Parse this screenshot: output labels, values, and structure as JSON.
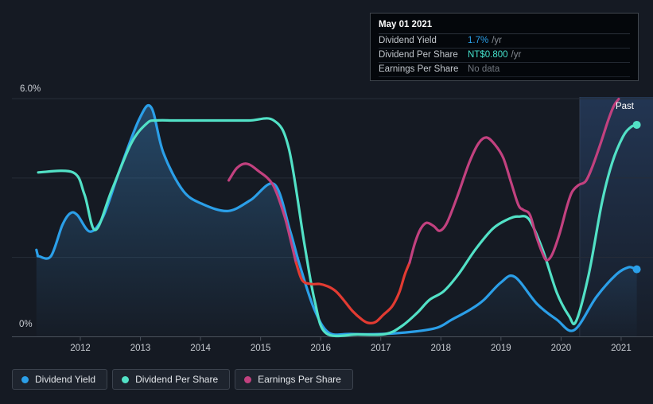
{
  "tooltip": {
    "date": "May 01 2021",
    "rows": [
      {
        "label": "Dividend Yield",
        "value": "1.7%",
        "suffix": "/yr",
        "value_color": "#2B9FE8"
      },
      {
        "label": "Dividend Per Share",
        "value": "NT$0.800",
        "suffix": "/yr",
        "value_color": "#45E0CB"
      },
      {
        "label": "Earnings Per Share",
        "value": "No data",
        "suffix": "",
        "value_color": "#70767E"
      }
    ]
  },
  "legend": [
    {
      "label": "Dividend Yield",
      "color": "#2B9FE8"
    },
    {
      "label": "Dividend Per Share",
      "color": "#52E1C6"
    },
    {
      "label": "Earnings Per Share",
      "color": "#C2417F"
    }
  ],
  "chart_data": {
    "type": "line",
    "title": "",
    "x_axis": {
      "ticks": [
        2012,
        2013,
        2014,
        2015,
        2016,
        2017,
        2018,
        2019,
        2020,
        2021
      ],
      "range": [
        2011.2,
        2021.5
      ]
    },
    "y_axis": {
      "label_top": "6.0%",
      "label_bottom": "0%",
      "range": [
        0,
        6
      ],
      "gridlines_pct": [
        0,
        2,
        4,
        6
      ]
    },
    "past_divider_x": 2020.31,
    "past_label": "Past",
    "colors": {
      "grid": "#272E38",
      "axis": "#4A515B",
      "tick_text": "#C9CDD3",
      "background": "#151A23",
      "red_segment": "#E23B32"
    },
    "series": [
      {
        "name": "Dividend Yield",
        "color": "#2B9FE8",
        "area": true,
        "end_dot": true,
        "points": [
          [
            2011.27,
            2.19
          ],
          [
            2011.29,
            2.06
          ],
          [
            2011.31,
            2.03
          ],
          [
            2011.51,
            2.03
          ],
          [
            2011.7,
            2.81
          ],
          [
            2011.83,
            3.11
          ],
          [
            2011.95,
            3.07
          ],
          [
            2012.16,
            2.65
          ],
          [
            2012.38,
            3.03
          ],
          [
            2012.65,
            4.18
          ],
          [
            2012.98,
            5.48
          ],
          [
            2013.18,
            5.78
          ],
          [
            2013.38,
            4.64
          ],
          [
            2013.71,
            3.68
          ],
          [
            2014.04,
            3.34
          ],
          [
            2014.46,
            3.17
          ],
          [
            2014.83,
            3.44
          ],
          [
            2015.23,
            3.84
          ],
          [
            2015.49,
            2.67
          ],
          [
            2015.65,
            1.81
          ],
          [
            2015.89,
            0.71
          ],
          [
            2016.13,
            0.11
          ],
          [
            2016.49,
            0.07
          ],
          [
            2017.02,
            0.07
          ],
          [
            2017.55,
            0.13
          ],
          [
            2017.94,
            0.23
          ],
          [
            2018.18,
            0.43
          ],
          [
            2018.47,
            0.67
          ],
          [
            2018.7,
            0.91
          ],
          [
            2019.0,
            1.37
          ],
          [
            2019.23,
            1.51
          ],
          [
            2019.6,
            0.83
          ],
          [
            2019.93,
            0.43
          ],
          [
            2020.22,
            0.17
          ],
          [
            2020.59,
            1.01
          ],
          [
            2020.92,
            1.57
          ],
          [
            2021.12,
            1.75
          ],
          [
            2021.22,
            1.72
          ],
          [
            2021.26,
            1.7
          ]
        ]
      },
      {
        "name": "Dividend Per Share",
        "color": "#52E1C6",
        "end_dot": true,
        "points": [
          [
            2011.3,
            4.14
          ],
          [
            2011.88,
            4.14
          ],
          [
            2012.07,
            3.58
          ],
          [
            2012.25,
            2.69
          ],
          [
            2012.52,
            3.68
          ],
          [
            2012.85,
            4.88
          ],
          [
            2013.11,
            5.38
          ],
          [
            2013.27,
            5.45
          ],
          [
            2013.6,
            5.45
          ],
          [
            2014.2,
            5.45
          ],
          [
            2014.8,
            5.45
          ],
          [
            2015.22,
            5.45
          ],
          [
            2015.47,
            4.74
          ],
          [
            2015.73,
            2.33
          ],
          [
            2015.9,
            0.91
          ],
          [
            2016.09,
            0.09
          ],
          [
            2016.62,
            0.06
          ],
          [
            2017.08,
            0.07
          ],
          [
            2017.35,
            0.27
          ],
          [
            2017.61,
            0.61
          ],
          [
            2017.81,
            0.93
          ],
          [
            2018.05,
            1.15
          ],
          [
            2018.3,
            1.59
          ],
          [
            2018.58,
            2.21
          ],
          [
            2018.87,
            2.73
          ],
          [
            2019.13,
            2.97
          ],
          [
            2019.29,
            3.03
          ],
          [
            2019.47,
            2.95
          ],
          [
            2019.69,
            2.21
          ],
          [
            2019.93,
            1.11
          ],
          [
            2020.13,
            0.53
          ],
          [
            2020.25,
            0.39
          ],
          [
            2020.46,
            1.57
          ],
          [
            2020.68,
            3.38
          ],
          [
            2020.85,
            4.38
          ],
          [
            2021.03,
            5.04
          ],
          [
            2021.16,
            5.28
          ],
          [
            2021.26,
            5.34
          ]
        ]
      },
      {
        "name": "Earnings Per Share",
        "color": "#C2417F",
        "segments": [
          {
            "color": "#C2417F",
            "points": [
              [
                2014.47,
                3.94
              ],
              [
                2014.61,
                4.26
              ],
              [
                2014.77,
                4.36
              ],
              [
                2014.96,
                4.18
              ],
              [
                2015.2,
                3.84
              ],
              [
                2015.39,
                3.08
              ],
              [
                2015.51,
                2.37
              ],
              [
                2015.59,
                1.87
              ]
            ]
          },
          {
            "color": "#E23B32",
            "points": [
              [
                2015.59,
                1.87
              ],
              [
                2015.69,
                1.43
              ],
              [
                2015.83,
                1.33
              ],
              [
                2015.98,
                1.33
              ],
              [
                2016.12,
                1.27
              ],
              [
                2016.25,
                1.15
              ],
              [
                2016.38,
                0.93
              ],
              [
                2016.53,
                0.65
              ],
              [
                2016.69,
                0.43
              ],
              [
                2016.79,
                0.35
              ],
              [
                2016.91,
                0.37
              ],
              [
                2017.04,
                0.55
              ],
              [
                2017.19,
                0.77
              ],
              [
                2017.31,
                1.13
              ],
              [
                2017.4,
                1.57
              ],
              [
                2017.48,
                1.87
              ]
            ]
          },
          {
            "color": "#C2417F",
            "points": [
              [
                2017.48,
                1.87
              ],
              [
                2017.57,
                2.37
              ],
              [
                2017.66,
                2.71
              ],
              [
                2017.76,
                2.87
              ],
              [
                2017.88,
                2.79
              ],
              [
                2017.98,
                2.67
              ],
              [
                2018.1,
                2.87
              ],
              [
                2018.27,
                3.52
              ],
              [
                2018.47,
                4.38
              ],
              [
                2018.63,
                4.88
              ],
              [
                2018.76,
                5.02
              ],
              [
                2018.9,
                4.84
              ],
              [
                2019.04,
                4.5
              ],
              [
                2019.17,
                3.88
              ],
              [
                2019.29,
                3.32
              ],
              [
                2019.37,
                3.2
              ],
              [
                2019.48,
                3.08
              ],
              [
                2019.58,
                2.57
              ],
              [
                2019.69,
                2.11
              ],
              [
                2019.76,
                1.93
              ],
              [
                2019.85,
                2.07
              ],
              [
                2019.97,
                2.57
              ],
              [
                2020.09,
                3.24
              ],
              [
                2020.18,
                3.64
              ],
              [
                2020.29,
                3.82
              ],
              [
                2020.41,
                3.92
              ],
              [
                2020.52,
                4.28
              ],
              [
                2020.66,
                4.88
              ],
              [
                2020.79,
                5.48
              ],
              [
                2020.88,
                5.82
              ],
              [
                2020.96,
                5.99
              ]
            ]
          }
        ]
      }
    ]
  }
}
